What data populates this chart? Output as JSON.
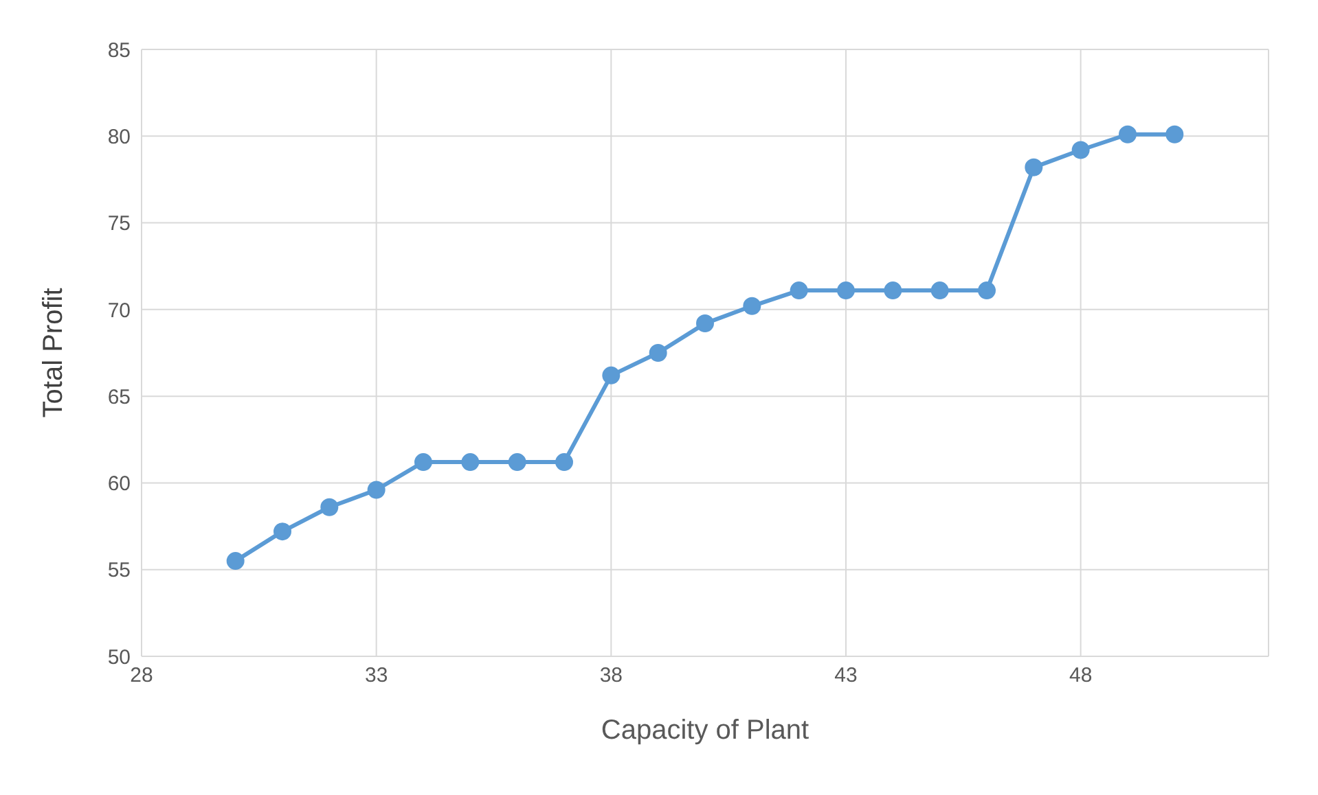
{
  "chart_data": {
    "type": "line",
    "xlabel": "Capacity of Plant",
    "ylabel": "Total Profit",
    "x": [
      30,
      31,
      32,
      33,
      34,
      35,
      36,
      37,
      38,
      39,
      40,
      41,
      42,
      43,
      44,
      45,
      46,
      47,
      48,
      49,
      50
    ],
    "series": [
      {
        "color": "#5b9bd5",
        "values": [
          55.5,
          57.2,
          58.6,
          59.6,
          61.2,
          61.2,
          61.2,
          61.2,
          66.2,
          67.5,
          69.2,
          70.2,
          71.1,
          71.1,
          71.1,
          71.1,
          71.1,
          78.2,
          79.2,
          80.1,
          80.1
        ]
      }
    ],
    "xlim": [
      28,
      52
    ],
    "xticks": [
      28,
      33,
      38,
      43,
      48
    ],
    "ylim": [
      50,
      85
    ],
    "yticks": [
      50,
      55,
      60,
      65,
      70,
      75,
      80,
      85
    ],
    "grid": true,
    "marker": "circle",
    "line_style": "solid"
  }
}
